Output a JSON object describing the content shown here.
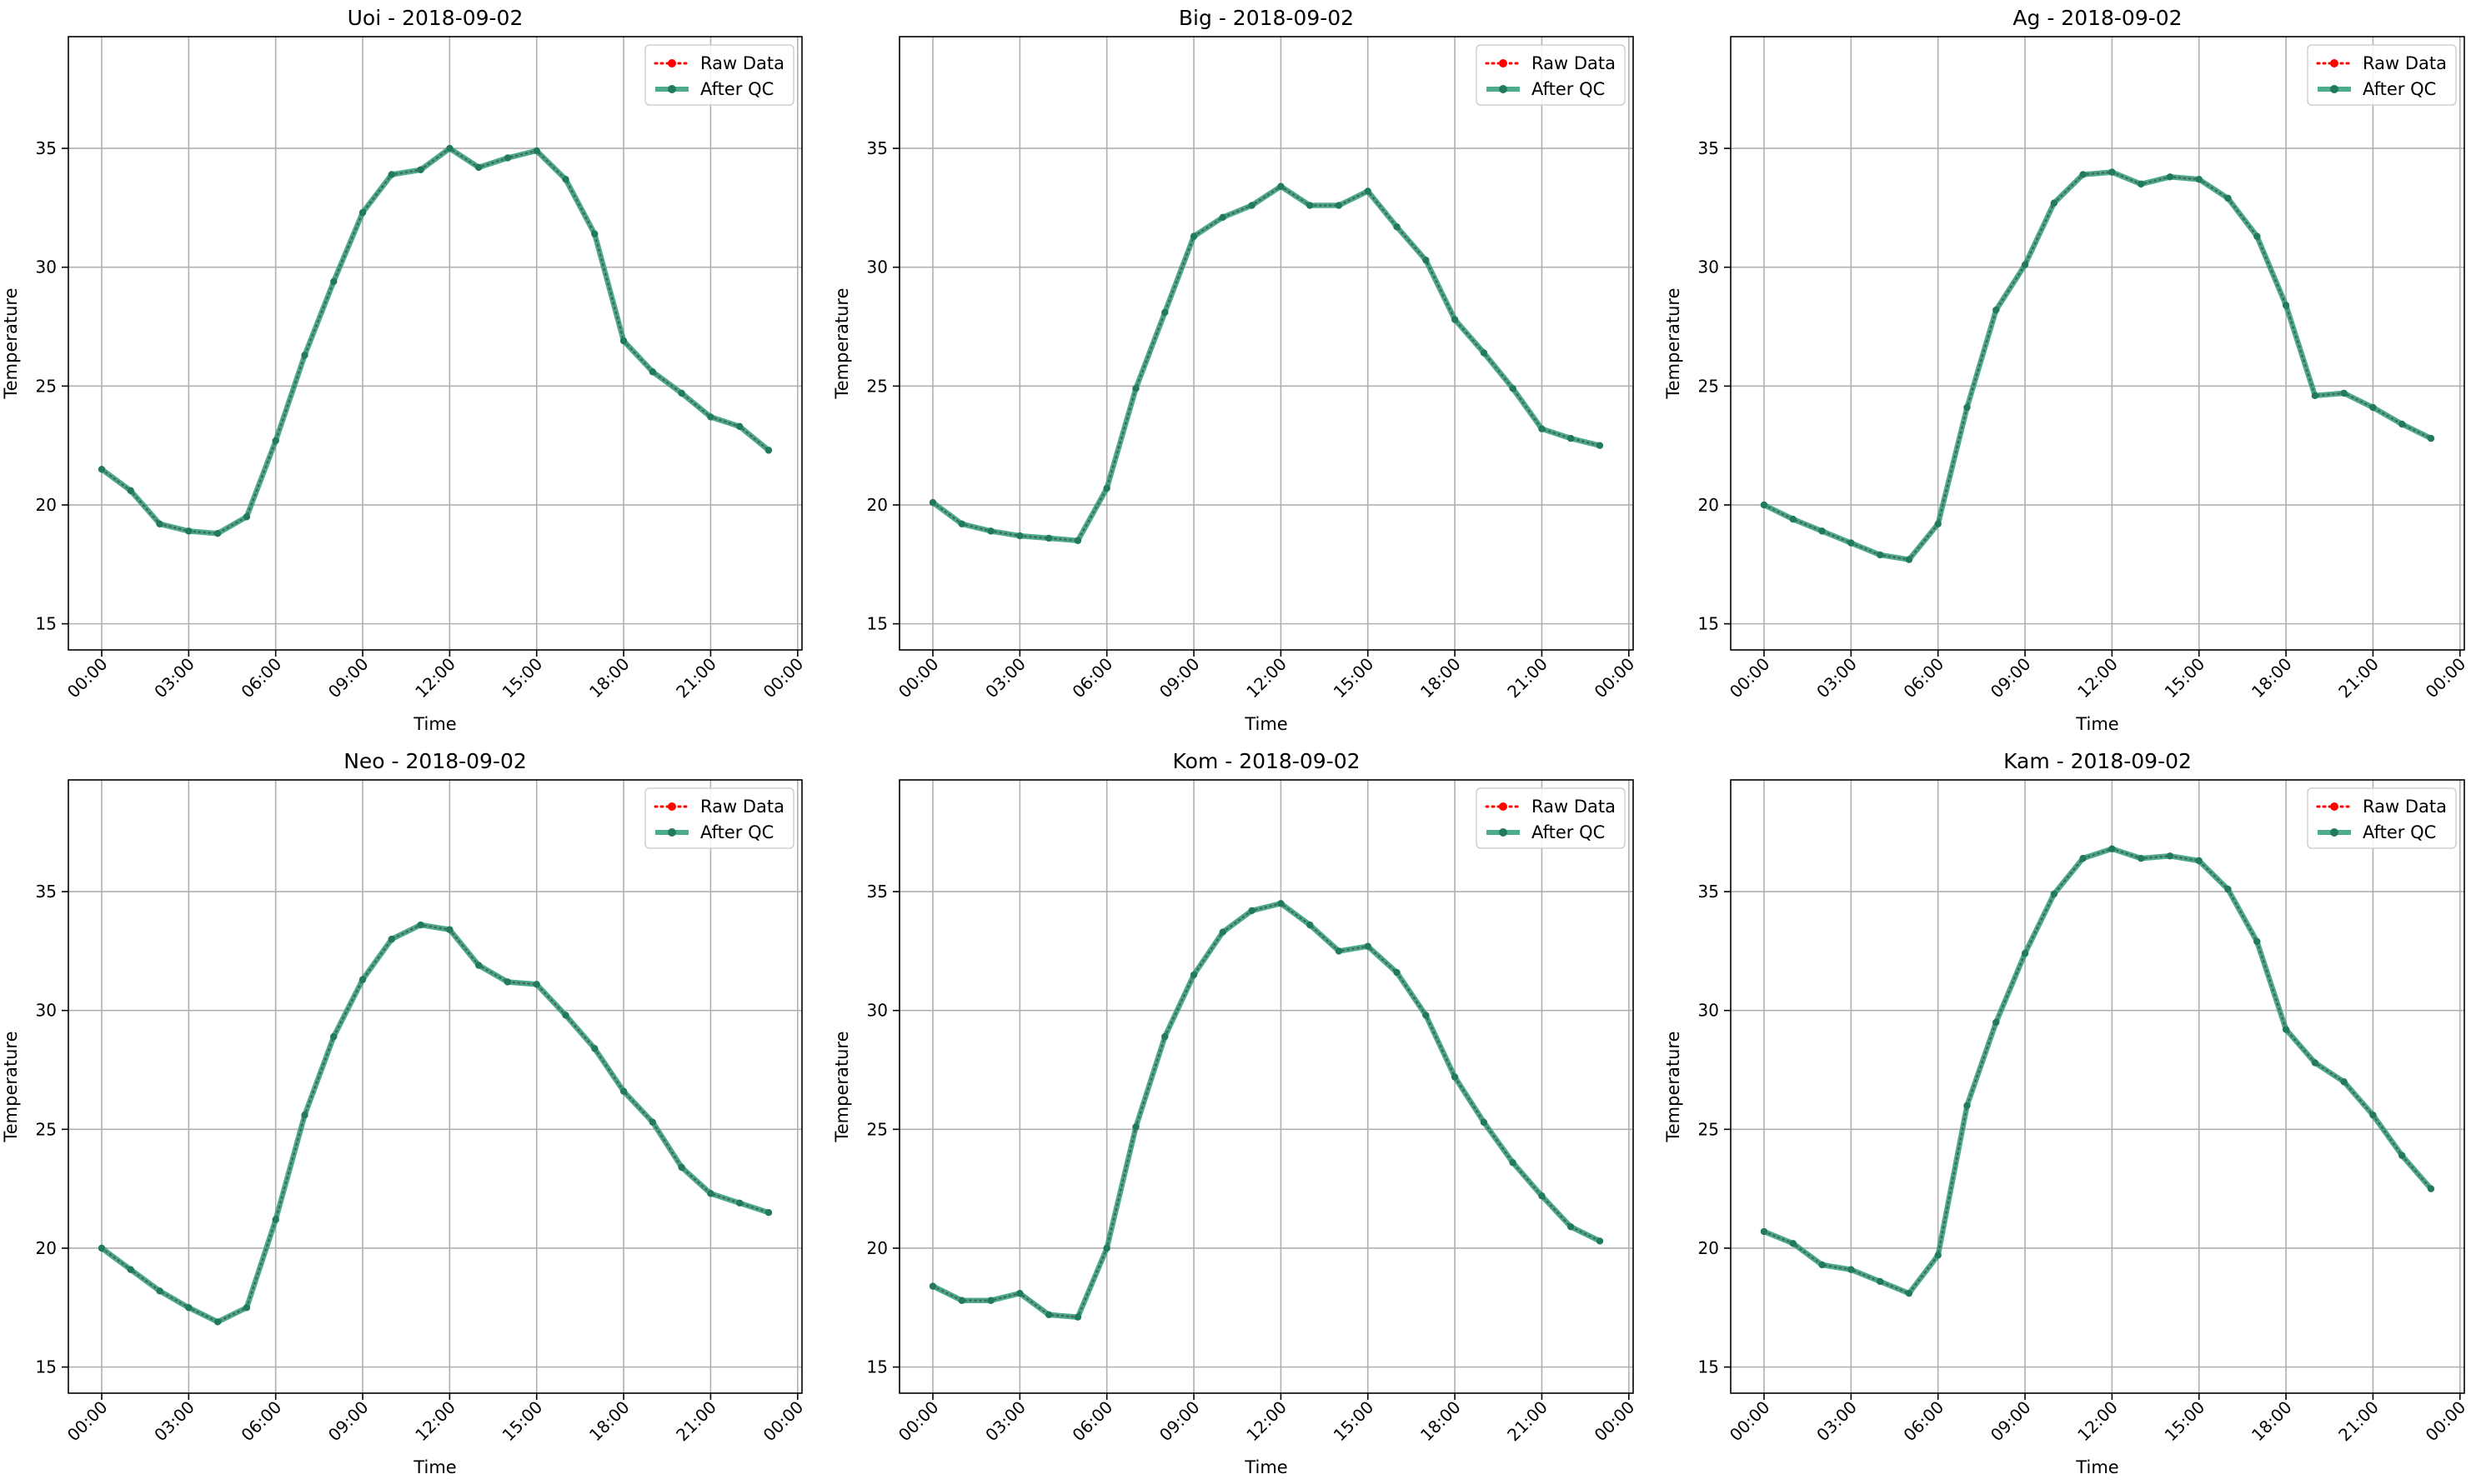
{
  "colors": {
    "raw": "#ff0000",
    "qc": "#2e9e7a",
    "qc_marker": "#217a5e",
    "grid": "#b0b0b0",
    "frame": "#000000"
  },
  "shared": {
    "date": "2018-09-02",
    "xlabel": "Time",
    "ylabel": "Temperature",
    "legend": [
      "Raw Data",
      "After QC"
    ],
    "x_ticks": [
      "00:00",
      "03:00",
      "06:00",
      "09:00",
      "12:00",
      "15:00",
      "18:00",
      "21:00",
      "00:00"
    ],
    "y_ticks": [
      "15",
      "20",
      "25",
      "30",
      "35"
    ]
  },
  "chart_data": [
    {
      "type": "line",
      "title": "Uoi - 2018-09-02",
      "xlabel": "Time",
      "ylabel": "Temperature",
      "x_hours": [
        0,
        1,
        2,
        3,
        4,
        5,
        6,
        7,
        8,
        9,
        10,
        11,
        12,
        13,
        14,
        15,
        16,
        17,
        18,
        19,
        20,
        21,
        22,
        23
      ],
      "ylim": [
        13.9,
        39.7
      ],
      "xlim_hours": [
        -1.15,
        24.15
      ],
      "grid": true,
      "legend_position": "top-right",
      "series": [
        {
          "name": "Raw Data",
          "style": "dotted",
          "values": [
            21.5,
            20.6,
            19.2,
            18.9,
            18.8,
            19.5,
            22.7,
            26.3,
            29.4,
            32.3,
            33.9,
            34.1,
            35.0,
            34.2,
            34.6,
            34.9,
            33.7,
            31.4,
            26.9,
            25.6,
            24.7,
            23.7,
            23.3,
            22.3
          ]
        },
        {
          "name": "After QC",
          "style": "solid",
          "values": [
            21.5,
            20.6,
            19.2,
            18.9,
            18.8,
            19.5,
            22.7,
            26.3,
            29.4,
            32.3,
            33.9,
            34.1,
            35.0,
            34.2,
            34.6,
            34.9,
            33.7,
            31.4,
            26.9,
            25.6,
            24.7,
            23.7,
            23.3,
            22.3
          ]
        }
      ]
    },
    {
      "type": "line",
      "title": "Big - 2018-09-02",
      "xlabel": "Time",
      "ylabel": "Temperature",
      "x_hours": [
        0,
        1,
        2,
        3,
        4,
        5,
        6,
        7,
        8,
        9,
        10,
        11,
        12,
        13,
        14,
        15,
        16,
        17,
        18,
        19,
        20,
        21,
        22,
        23
      ],
      "ylim": [
        13.9,
        39.7
      ],
      "xlim_hours": [
        -1.15,
        24.15
      ],
      "grid": true,
      "legend_position": "top-right",
      "series": [
        {
          "name": "Raw Data",
          "style": "dotted",
          "values": [
            20.1,
            19.2,
            18.9,
            18.7,
            18.6,
            18.5,
            20.7,
            24.9,
            28.1,
            31.3,
            32.1,
            32.6,
            33.4,
            32.6,
            32.6,
            33.2,
            31.7,
            30.3,
            27.8,
            26.4,
            24.9,
            23.2,
            22.8,
            22.5
          ]
        },
        {
          "name": "After QC",
          "style": "solid",
          "values": [
            20.1,
            19.2,
            18.9,
            18.7,
            18.6,
            18.5,
            20.7,
            24.9,
            28.1,
            31.3,
            32.1,
            32.6,
            33.4,
            32.6,
            32.6,
            33.2,
            31.7,
            30.3,
            27.8,
            26.4,
            24.9,
            23.2,
            22.8,
            22.5
          ]
        }
      ]
    },
    {
      "type": "line",
      "title": "Ag - 2018-09-02",
      "xlabel": "Time",
      "ylabel": "Temperature",
      "x_hours": [
        0,
        1,
        2,
        3,
        4,
        5,
        6,
        7,
        8,
        9,
        10,
        11,
        12,
        13,
        14,
        15,
        16,
        17,
        18,
        19,
        20,
        21,
        22,
        23
      ],
      "ylim": [
        13.9,
        39.7
      ],
      "xlim_hours": [
        -1.15,
        24.15
      ],
      "grid": true,
      "legend_position": "top-right",
      "series": [
        {
          "name": "Raw Data",
          "style": "dotted",
          "values": [
            20.0,
            19.4,
            18.9,
            18.4,
            17.9,
            17.7,
            19.2,
            24.1,
            28.2,
            30.1,
            32.7,
            33.9,
            34.0,
            33.5,
            33.8,
            33.7,
            32.9,
            31.3,
            28.4,
            24.6,
            24.7,
            24.1,
            23.4,
            22.8
          ]
        },
        {
          "name": "After QC",
          "style": "solid",
          "values": [
            20.0,
            19.4,
            18.9,
            18.4,
            17.9,
            17.7,
            19.2,
            24.1,
            28.2,
            30.1,
            32.7,
            33.9,
            34.0,
            33.5,
            33.8,
            33.7,
            32.9,
            31.3,
            28.4,
            24.6,
            24.7,
            24.1,
            23.4,
            22.8
          ]
        }
      ]
    },
    {
      "type": "line",
      "title": "Neo - 2018-09-02",
      "xlabel": "Time",
      "ylabel": "Temperature",
      "x_hours": [
        0,
        1,
        2,
        3,
        4,
        5,
        6,
        7,
        8,
        9,
        10,
        11,
        12,
        13,
        14,
        15,
        16,
        17,
        18,
        19,
        20,
        21,
        22,
        23
      ],
      "ylim": [
        13.9,
        39.7
      ],
      "xlim_hours": [
        -1.15,
        24.15
      ],
      "grid": true,
      "legend_position": "top-right",
      "series": [
        {
          "name": "Raw Data",
          "style": "dotted",
          "values": [
            20.0,
            19.1,
            18.2,
            17.5,
            16.9,
            17.5,
            21.2,
            25.6,
            28.9,
            31.3,
            33.0,
            33.6,
            33.4,
            31.9,
            31.2,
            31.1,
            29.8,
            28.4,
            26.6,
            25.3,
            23.4,
            22.3,
            21.9,
            21.5
          ]
        },
        {
          "name": "After QC",
          "style": "solid",
          "values": [
            20.0,
            19.1,
            18.2,
            17.5,
            16.9,
            17.5,
            21.2,
            25.6,
            28.9,
            31.3,
            33.0,
            33.6,
            33.4,
            31.9,
            31.2,
            31.1,
            29.8,
            28.4,
            26.6,
            25.3,
            23.4,
            22.3,
            21.9,
            21.5
          ]
        }
      ]
    },
    {
      "type": "line",
      "title": "Kom - 2018-09-02",
      "xlabel": "Time",
      "ylabel": "Temperature",
      "x_hours": [
        0,
        1,
        2,
        3,
        4,
        5,
        6,
        7,
        8,
        9,
        10,
        11,
        12,
        13,
        14,
        15,
        16,
        17,
        18,
        19,
        20,
        21,
        22,
        23
      ],
      "ylim": [
        13.9,
        39.7
      ],
      "xlim_hours": [
        -1.15,
        24.15
      ],
      "grid": true,
      "legend_position": "top-right",
      "series": [
        {
          "name": "Raw Data",
          "style": "dotted",
          "values": [
            18.4,
            17.8,
            17.8,
            18.1,
            17.2,
            17.1,
            20.0,
            25.1,
            28.9,
            31.5,
            33.3,
            34.2,
            34.5,
            33.6,
            32.5,
            32.7,
            31.6,
            29.8,
            27.2,
            25.3,
            23.6,
            22.2,
            20.9,
            20.3
          ]
        },
        {
          "name": "After QC",
          "style": "solid",
          "values": [
            18.4,
            17.8,
            17.8,
            18.1,
            17.2,
            17.1,
            20.0,
            25.1,
            28.9,
            31.5,
            33.3,
            34.2,
            34.5,
            33.6,
            32.5,
            32.7,
            31.6,
            29.8,
            27.2,
            25.3,
            23.6,
            22.2,
            20.9,
            20.3
          ]
        }
      ]
    },
    {
      "type": "line",
      "title": "Kam - 2018-09-02",
      "xlabel": "Time",
      "ylabel": "Temperature",
      "x_hours": [
        0,
        1,
        2,
        3,
        4,
        5,
        6,
        7,
        8,
        9,
        10,
        11,
        12,
        13,
        14,
        15,
        16,
        17,
        18,
        19,
        20,
        21,
        22,
        23
      ],
      "ylim": [
        13.9,
        39.7
      ],
      "xlim_hours": [
        -1.15,
        24.15
      ],
      "grid": true,
      "legend_position": "top-right",
      "series": [
        {
          "name": "Raw Data",
          "style": "dotted",
          "values": [
            20.7,
            20.2,
            19.3,
            19.1,
            18.6,
            18.1,
            19.7,
            26.0,
            29.5,
            32.4,
            34.9,
            36.4,
            36.8,
            36.4,
            36.5,
            36.3,
            35.1,
            32.9,
            29.2,
            27.8,
            27.0,
            25.6,
            23.9,
            22.5
          ]
        },
        {
          "name": "After QC",
          "style": "solid",
          "values": [
            20.7,
            20.2,
            19.3,
            19.1,
            18.6,
            18.1,
            19.7,
            26.0,
            29.5,
            32.4,
            34.9,
            36.4,
            36.8,
            36.4,
            36.5,
            36.3,
            35.1,
            32.9,
            29.2,
            27.8,
            27.0,
            25.6,
            23.9,
            22.5
          ]
        }
      ]
    }
  ]
}
